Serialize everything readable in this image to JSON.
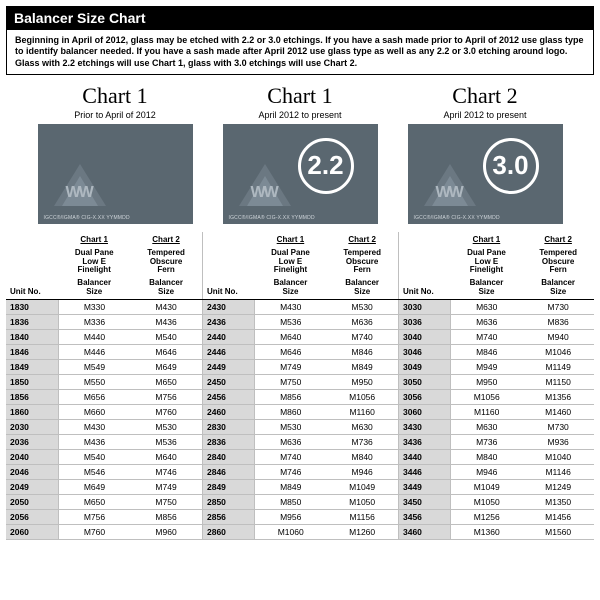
{
  "title": "Balancer Size Chart",
  "intro": "Beginning in April of 2012, glass may be etched with 2.2 or 3.0 etchings.  If you have a sash made prior to April of 2012 use glass type to identify balancer needed.  If you have a sash made after April 2012 use glass type as well as any 2.2 or 3.0 etching around logo. Glass with 2.2 etchings will use Chart 1, glass with 3.0 etchings will use Chart 2.",
  "chart_headers": [
    {
      "title": "Chart 1",
      "sub": "Prior to April of 2012",
      "badge": ""
    },
    {
      "title": "Chart 1",
      "sub": "April 2012 to present",
      "badge": "2.2"
    },
    {
      "title": "Chart 2",
      "sub": "April 2012 to present",
      "badge": "3.0"
    }
  ],
  "columns": {
    "unit": "Unit No.",
    "c1_top": "Chart 1",
    "c1_mid": "Dual Pane\nLow E\nFinelight",
    "c2_top": "Chart 2",
    "c2_mid": "Tempered\nObscure\nFern",
    "bal": "Balancer\nSize"
  },
  "groups": [
    [
      {
        "u": "1830",
        "a": "M330",
        "b": "M430"
      },
      {
        "u": "1836",
        "a": "M336",
        "b": "M436"
      },
      {
        "u": "1840",
        "a": "M440",
        "b": "M540"
      },
      {
        "u": "1846",
        "a": "M446",
        "b": "M646"
      },
      {
        "u": "1849",
        "a": "M549",
        "b": "M649"
      },
      {
        "u": "1850",
        "a": "M550",
        "b": "M650"
      },
      {
        "u": "1856",
        "a": "M656",
        "b": "M756"
      },
      {
        "u": "1860",
        "a": "M660",
        "b": "M760"
      },
      {
        "u": "2030",
        "a": "M430",
        "b": "M530"
      },
      {
        "u": "2036",
        "a": "M436",
        "b": "M536"
      },
      {
        "u": "2040",
        "a": "M540",
        "b": "M640"
      },
      {
        "u": "2046",
        "a": "M546",
        "b": "M746"
      },
      {
        "u": "2049",
        "a": "M649",
        "b": "M749"
      },
      {
        "u": "2050",
        "a": "M650",
        "b": "M750"
      },
      {
        "u": "2056",
        "a": "M756",
        "b": "M856"
      },
      {
        "u": "2060",
        "a": "M760",
        "b": "M960"
      }
    ],
    [
      {
        "u": "2430",
        "a": "M430",
        "b": "M530"
      },
      {
        "u": "2436",
        "a": "M536",
        "b": "M636"
      },
      {
        "u": "2440",
        "a": "M640",
        "b": "M740"
      },
      {
        "u": "2446",
        "a": "M646",
        "b": "M846"
      },
      {
        "u": "2449",
        "a": "M749",
        "b": "M849"
      },
      {
        "u": "2450",
        "a": "M750",
        "b": "M950"
      },
      {
        "u": "2456",
        "a": "M856",
        "b": "M1056"
      },
      {
        "u": "2460",
        "a": "M860",
        "b": "M1160"
      },
      {
        "u": "2830",
        "a": "M530",
        "b": "M630"
      },
      {
        "u": "2836",
        "a": "M636",
        "b": "M736"
      },
      {
        "u": "2840",
        "a": "M740",
        "b": "M840"
      },
      {
        "u": "2846",
        "a": "M746",
        "b": "M946"
      },
      {
        "u": "2849",
        "a": "M849",
        "b": "M1049"
      },
      {
        "u": "2850",
        "a": "M850",
        "b": "M1050"
      },
      {
        "u": "2856",
        "a": "M956",
        "b": "M1156"
      },
      {
        "u": "2860",
        "a": "M1060",
        "b": "M1260"
      }
    ],
    [
      {
        "u": "3030",
        "a": "M630",
        "b": "M730"
      },
      {
        "u": "3036",
        "a": "M636",
        "b": "M836"
      },
      {
        "u": "3040",
        "a": "M740",
        "b": "M940"
      },
      {
        "u": "3046",
        "a": "M846",
        "b": "M1046"
      },
      {
        "u": "3049",
        "a": "M949",
        "b": "M1149"
      },
      {
        "u": "3050",
        "a": "M950",
        "b": "M1150"
      },
      {
        "u": "3056",
        "a": "M1056",
        "b": "M1356"
      },
      {
        "u": "3060",
        "a": "M1160",
        "b": "M1460"
      },
      {
        "u": "3430",
        "a": "M630",
        "b": "M730"
      },
      {
        "u": "3436",
        "a": "M736",
        "b": "M936"
      },
      {
        "u": "3440",
        "a": "M840",
        "b": "M1040"
      },
      {
        "u": "3446",
        "a": "M946",
        "b": "M1146"
      },
      {
        "u": "3449",
        "a": "M1049",
        "b": "M1249"
      },
      {
        "u": "3450",
        "a": "M1050",
        "b": "M1350"
      },
      {
        "u": "3456",
        "a": "M1256",
        "b": "M1456"
      },
      {
        "u": "3460",
        "a": "M1360",
        "b": "M1560"
      }
    ]
  ],
  "style": {
    "title_bg": "#000000",
    "title_fg": "#ffffff",
    "logo_bg": "#5a6770",
    "unit_bg": "#d9d9d9",
    "grid_color": "#bfbfbf",
    "font": "Arial",
    "chart_title_font": "Georgia serif",
    "chart_title_size_pt": 22,
    "body_font_size_pt": 8.5
  }
}
